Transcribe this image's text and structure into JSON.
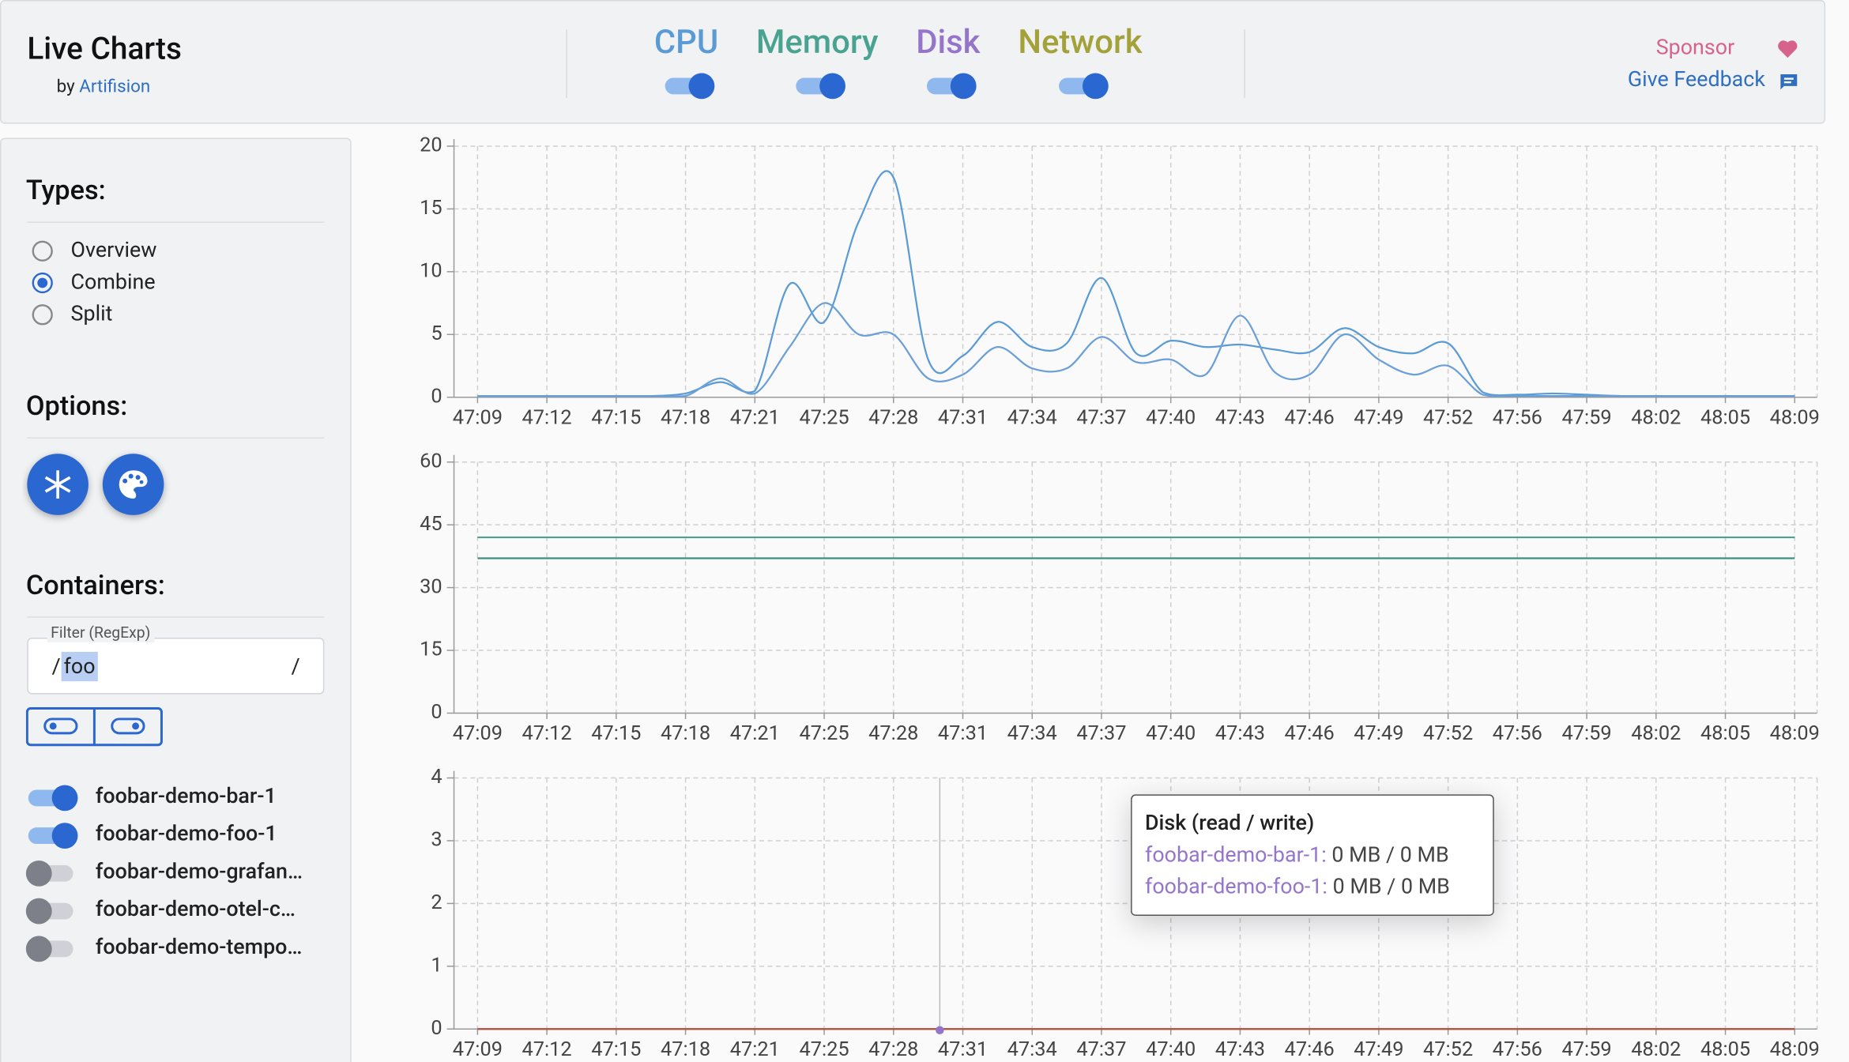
{
  "header": {
    "title": "Live Charts",
    "by": "by",
    "author": "Artifision",
    "toggles": [
      {
        "label": "CPU",
        "color": "#5b9bd5",
        "on": true
      },
      {
        "label": "Memory",
        "color": "#4aa391",
        "on": true
      },
      {
        "label": "Disk",
        "color": "#9475c9",
        "on": true
      },
      {
        "label": "Network",
        "color": "#a3a23a",
        "on": true
      }
    ],
    "sponsor": "Sponsor",
    "feedback": "Give Feedback"
  },
  "sidebar": {
    "types_title": "Types:",
    "types": [
      {
        "label": "Overview",
        "selected": false
      },
      {
        "label": "Combine",
        "selected": true
      },
      {
        "label": "Split",
        "selected": false
      }
    ],
    "options_title": "Options:",
    "containers_title": "Containers:",
    "filter_label": "Filter (RegExp)",
    "filter_prefix": "/",
    "filter_value": "foo",
    "filter_suffix": "/",
    "containers": [
      {
        "name": "foobar-demo-bar-1",
        "on": true
      },
      {
        "name": "foobar-demo-foo-1",
        "on": true
      },
      {
        "name": "foobar-demo-grafan…",
        "on": false
      },
      {
        "name": "foobar-demo-otel-c…",
        "on": false
      },
      {
        "name": "foobar-demo-tempo…",
        "on": false
      }
    ]
  },
  "chart_data": [
    {
      "type": "line",
      "categories": [
        "47:09",
        null,
        "47:12",
        null,
        "47:15",
        null,
        "47:18",
        null,
        "47:21",
        null,
        "47:25",
        null,
        "47:28",
        null,
        "47:31",
        null,
        "47:34",
        null,
        "47:37",
        null,
        "47:40",
        null,
        "47:43",
        null,
        "47:46",
        null,
        "47:49",
        null,
        "47:52",
        null,
        "47:56",
        null,
        "47:59",
        null,
        "48:02",
        null,
        "48:05",
        null,
        "48:09"
      ],
      "series": [
        {
          "color": "#5b9bd5",
          "values": [
            0.1,
            0.1,
            0.1,
            0.1,
            0.1,
            0.1,
            0.3,
            1.2,
            0.5,
            9,
            6,
            14,
            17.5,
            3,
            3.3,
            6,
            4,
            4.3,
            9.5,
            3.5,
            4.5,
            4,
            4.2,
            3.8,
            3.6,
            5.5,
            4,
            3.5,
            4.3,
            0.4,
            0.2,
            0.3,
            0.2,
            0.1,
            0.1,
            0.1,
            0.1,
            0.1,
            0.1
          ]
        },
        {
          "color": "#6a9fd8",
          "values": [
            0.1,
            0.1,
            0.1,
            0.1,
            0.1,
            0.1,
            0.1,
            1.5,
            0.3,
            4,
            7.5,
            5,
            5,
            1.5,
            1.8,
            4,
            2.3,
            2.3,
            4.8,
            2.8,
            3,
            1.8,
            6.5,
            2,
            1.8,
            5,
            3,
            1.8,
            2.5,
            0.2,
            0.1,
            0.1,
            0.1,
            0.1,
            0.1,
            0.1,
            0.1,
            0.1,
            0.1
          ]
        }
      ],
      "ylim": [
        0,
        20
      ],
      "yticks": [
        0,
        5,
        10,
        15,
        20
      ],
      "grid": true
    },
    {
      "type": "line",
      "categories": [
        "47:09",
        null,
        "47:12",
        null,
        "47:15",
        null,
        "47:18",
        null,
        "47:21",
        null,
        "47:25",
        null,
        "47:28",
        null,
        "47:31",
        null,
        "47:34",
        null,
        "47:37",
        null,
        "47:40",
        null,
        "47:43",
        null,
        "47:46",
        null,
        "47:49",
        null,
        "47:52",
        null,
        "47:56",
        null,
        "47:59",
        null,
        "48:02",
        null,
        "48:05",
        null,
        "48:09"
      ],
      "series": [
        {
          "color": "#4aa391",
          "values": [
            42,
            42,
            42,
            42,
            42,
            42,
            42,
            42,
            42,
            42,
            42,
            42,
            42,
            42,
            42,
            42,
            42,
            42,
            42,
            42,
            42,
            42,
            42,
            42,
            42,
            42,
            42,
            42,
            42,
            42,
            42,
            42,
            42,
            42,
            42,
            42,
            42,
            42,
            42
          ]
        },
        {
          "color": "#3f8f80",
          "values": [
            37,
            37,
            37,
            37,
            37,
            37,
            37,
            37,
            37,
            37,
            37,
            37,
            37,
            37,
            37,
            37,
            37,
            37,
            37,
            37,
            37,
            37,
            37,
            37,
            37,
            37,
            37,
            37,
            37,
            37,
            37,
            37,
            37,
            37,
            37,
            37,
            37,
            37,
            37
          ]
        }
      ],
      "ylim": [
        0,
        60
      ],
      "yticks": [
        0,
        15,
        30,
        45,
        60
      ],
      "grid": true
    },
    {
      "type": "line",
      "categories": [
        "47:09",
        null,
        "47:12",
        null,
        "47:15",
        null,
        "47:18",
        null,
        "47:21",
        null,
        "47:25",
        null,
        "47:28",
        null,
        "47:31",
        null,
        "47:34",
        null,
        "47:37",
        null,
        "47:40",
        null,
        "47:43",
        null,
        "47:46",
        null,
        "47:49",
        null,
        "47:52",
        null,
        "47:56",
        null,
        "47:59",
        null,
        "48:02",
        null,
        "48:05",
        null,
        "48:09"
      ],
      "series": [
        {
          "color": "#9475c9",
          "values": [
            0,
            0,
            0,
            0,
            0,
            0,
            0,
            0,
            0,
            0,
            0,
            0,
            0,
            0,
            0,
            0,
            0,
            0,
            0,
            0,
            0,
            0,
            0,
            0,
            0,
            0,
            0,
            0,
            0,
            0,
            0,
            0,
            0,
            0,
            0,
            0,
            0,
            0,
            0
          ]
        },
        {
          "color": "#b5533c",
          "values": [
            0,
            0,
            0,
            0,
            0,
            0,
            0,
            0,
            0,
            0,
            0,
            0,
            0,
            0,
            0,
            0,
            0,
            0,
            0,
            0,
            0,
            0,
            0,
            0,
            0,
            0,
            0,
            0,
            0,
            0,
            0,
            0,
            0,
            0,
            0,
            0,
            0,
            0,
            0
          ]
        }
      ],
      "ylim": [
        0,
        4
      ],
      "yticks": [
        0,
        1,
        2,
        3,
        4
      ],
      "grid": true
    }
  ],
  "tooltip": {
    "title": "Disk (read / write)",
    "rows": [
      {
        "name": "foobar-demo-bar-1:",
        "value": "0 MB / 0 MB"
      },
      {
        "name": "foobar-demo-foo-1:",
        "value": "0 MB / 0 MB"
      }
    ]
  }
}
